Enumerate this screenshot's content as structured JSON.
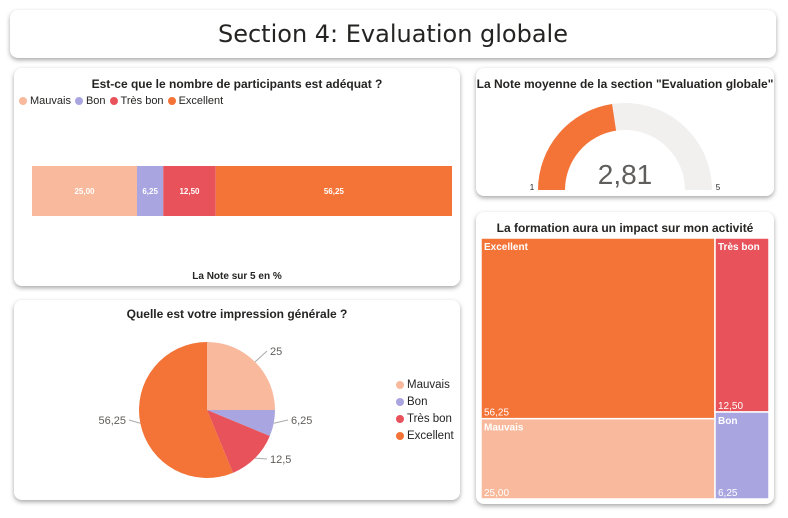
{
  "header": {
    "title": "Section 4: Evaluation globale"
  },
  "colors": {
    "Mauvais": "#F8B99C",
    "Bon": "#A9A5E0",
    "Très bon": "#E8525A",
    "Excellent": "#F47337",
    "gauge_bg": "#F1F0EF"
  },
  "legend": [
    "Mauvais",
    "Bon",
    "Très bon",
    "Excellent"
  ],
  "chart_data": [
    {
      "type": "bar",
      "title": "Est-ce que le nombre de participants est adéquat ?",
      "xlabel": "La Note sur 5 en %",
      "stacked": true,
      "series": [
        {
          "name": "Mauvais",
          "value": 25.0,
          "label": "25,00"
        },
        {
          "name": "Bon",
          "value": 6.25,
          "label": "6,25"
        },
        {
          "name": "Très bon",
          "value": 12.5,
          "label": "12,50"
        },
        {
          "name": "Excellent",
          "value": 56.25,
          "label": "56,25"
        }
      ]
    },
    {
      "type": "gauge",
      "title": "La Note moyenne de la section \"Evaluation globale\"",
      "value": 2.81,
      "value_label": "2,81",
      "min": 1,
      "max": 5,
      "min_label": "1",
      "max_label": "5"
    },
    {
      "type": "pie",
      "title": "Quelle est votre impression générale ?",
      "slices": [
        {
          "name": "Mauvais",
          "value": 25,
          "label": "25"
        },
        {
          "name": "Bon",
          "value": 6.25,
          "label": "6,25"
        },
        {
          "name": "Très bon",
          "value": 12.5,
          "label": "12,5"
        },
        {
          "name": "Excellent",
          "value": 56.25,
          "label": "56,25"
        }
      ]
    },
    {
      "type": "treemap",
      "title": "La formation aura un impact sur mon activité",
      "items": [
        {
          "name": "Excellent",
          "value": 56.25,
          "label": "56,25"
        },
        {
          "name": "Mauvais",
          "value": 25.0,
          "label": "25,00"
        },
        {
          "name": "Très bon",
          "value": 12.5,
          "label": "12,50"
        },
        {
          "name": "Bon",
          "value": 6.25,
          "label": "6,25"
        }
      ]
    }
  ]
}
